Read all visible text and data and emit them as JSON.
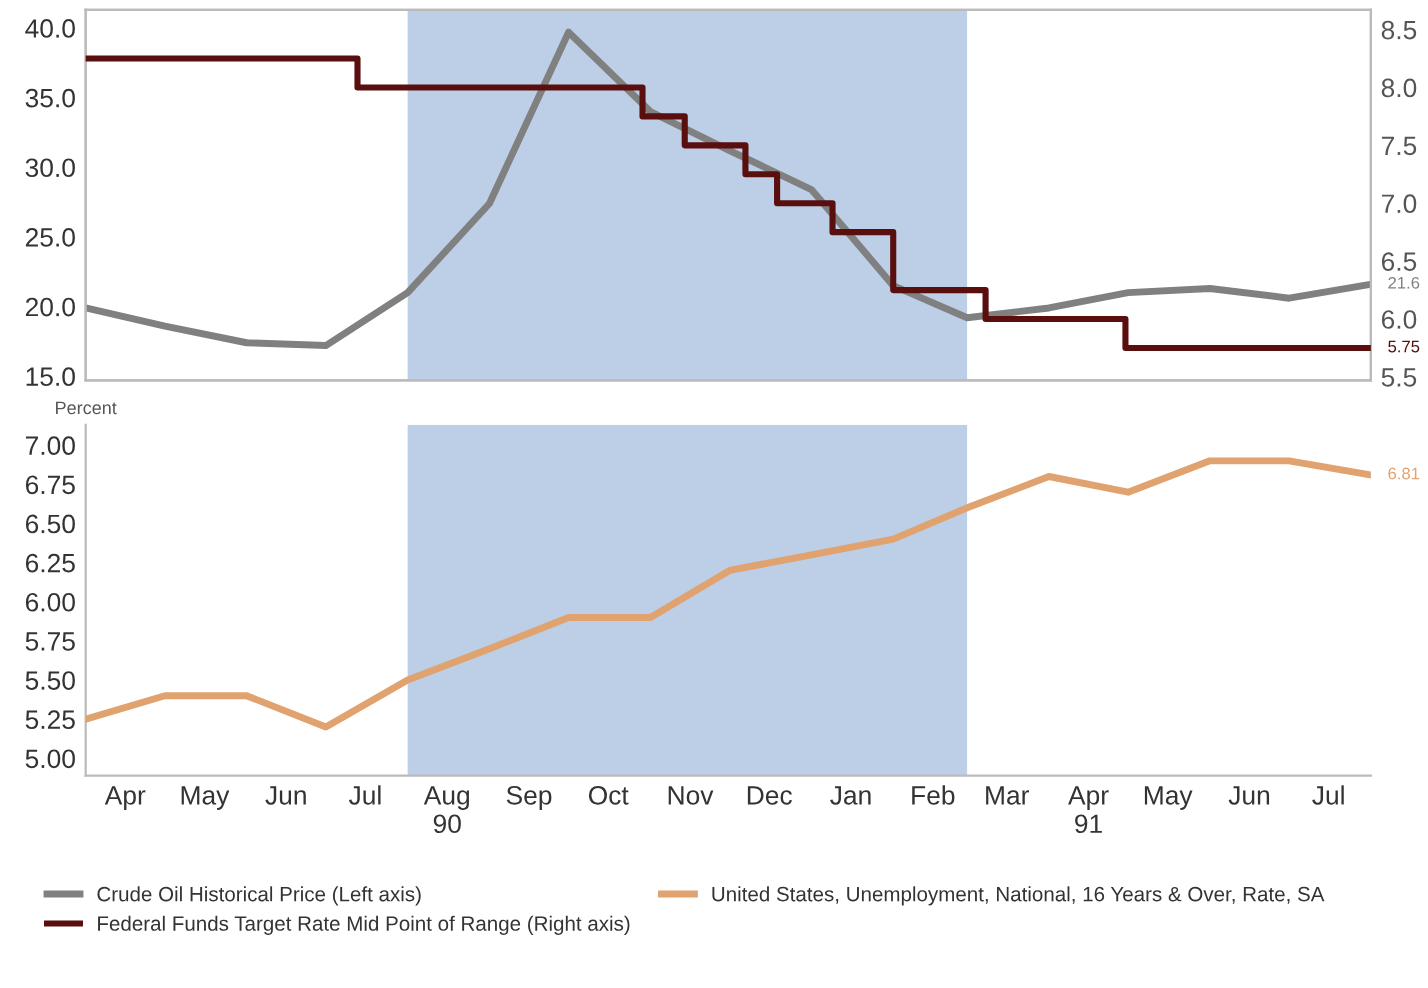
{
  "chart_data": [
    {
      "type": "line",
      "x": [
        "1990-04-01",
        "1990-05-01",
        "1990-06-01",
        "1990-07-01",
        "1990-08-01",
        "1990-09-01",
        "1990-10-01",
        "1990-11-01",
        "1990-12-01",
        "1991-01-01",
        "1991-02-01",
        "1991-03-01",
        "1991-04-01",
        "1991-05-01",
        "1991-06-01",
        "1991-07-01",
        "1991-08-01"
      ],
      "series": [
        {
          "name": "Crude Oil Historical Price (Left axis)",
          "color": "#808080",
          "values": [
            19.9,
            18.6,
            17.4,
            17.2,
            21.0,
            27.4,
            39.7,
            34.0,
            31.2,
            28.4,
            21.5,
            19.2,
            19.9,
            21.0,
            21.3,
            20.6,
            21.6
          ],
          "value_labels": [
            null,
            null,
            null,
            null,
            null,
            null,
            null,
            null,
            null,
            null,
            null,
            null,
            null,
            null,
            null,
            null,
            "21.6"
          ]
        },
        {
          "name": "Federal Funds Target Rate Mid Point of Range (Right axis)",
          "type": "step",
          "axis": "y2",
          "color": "#5a0f0f",
          "x": [
            "1990-04-01",
            "1990-07-13",
            "1990-10-29",
            "1990-11-14",
            "1990-12-07",
            "1990-12-19",
            "1991-01-09",
            "1991-02-01",
            "1991-03-08",
            "1991-04-30",
            "1991-08-01"
          ],
          "values": [
            8.25,
            8.0,
            7.75,
            7.5,
            7.25,
            7.0,
            6.75,
            6.25,
            6.0,
            5.75,
            5.75
          ],
          "value_labels": [
            null,
            null,
            null,
            null,
            null,
            null,
            null,
            null,
            null,
            null,
            "5.75"
          ]
        }
      ],
      "xlim": [
        "1990-04-01",
        "1991-08-01"
      ],
      "ylim": [
        14.7,
        41.3
      ],
      "yticks": [
        {
          "value": 15,
          "label": "15.0"
        },
        {
          "value": 20,
          "label": "20.0"
        },
        {
          "value": 25,
          "label": "25.0"
        },
        {
          "value": 30,
          "label": "30.0"
        },
        {
          "value": 35,
          "label": "35.0"
        },
        {
          "value": 40,
          "label": "40.0"
        }
      ],
      "y2lim": [
        5.47,
        8.67
      ],
      "y2ticks": [
        5.5,
        {
          "value": 6,
          "label": "6.0"
        },
        6.5,
        {
          "value": 7,
          "label": "7.0"
        },
        7.5,
        {
          "value": 8,
          "label": "8.0"
        },
        8.5
      ],
      "bands": [
        {
          "axis": "x",
          "from": "1990-08-01",
          "to": "1991-03-01",
          "color": "#bccfe6"
        }
      ],
      "tick_labels": "y",
      "grid": false,
      "legend": "bottom"
    },
    {
      "type": "line",
      "x": [
        "1990-04-01",
        "1990-05-01",
        "1990-06-01",
        "1990-07-01",
        "1990-08-01",
        "1990-09-01",
        "1990-10-01",
        "1990-11-01",
        "1990-12-01",
        "1991-01-01",
        "1991-02-01",
        "1991-03-01",
        "1991-04-01",
        "1991-05-01",
        "1991-06-01",
        "1991-07-01",
        "1991-08-01"
      ],
      "ylabel": "Percent",
      "series": [
        {
          "name": "United States, Unemployment, National, 16 Years & Over, Rate, SA",
          "color": "#e0a26e",
          "values": [
            5.25,
            5.4,
            5.4,
            5.2,
            5.5,
            5.7,
            5.9,
            5.9,
            6.2,
            6.3,
            6.4,
            6.6,
            6.8,
            6.7,
            6.9,
            6.9,
            6.81
          ],
          "value_labels": [
            null,
            null,
            null,
            null,
            null,
            null,
            null,
            null,
            null,
            null,
            null,
            null,
            null,
            null,
            null,
            null,
            "6.81"
          ]
        }
      ],
      "xlim": [
        "1990-04-01",
        "1991-08-01"
      ],
      "xticks": [
        {
          "value": "1990-04-16",
          "label": "Apr"
        },
        {
          "value": "1990-05-16",
          "label": "May"
        },
        {
          "value": "1990-06-16",
          "label": "Jun"
        },
        {
          "value": "1990-07-16",
          "label": "Jul"
        },
        {
          "value": "1990-08-16",
          "label": "Aug\n90"
        },
        {
          "value": "1990-09-16",
          "label": "Sep"
        },
        {
          "value": "1990-10-16",
          "label": "Oct"
        },
        {
          "value": "1990-11-16",
          "label": "Nov"
        },
        {
          "value": "1990-12-16",
          "label": "Dec"
        },
        {
          "value": "1991-01-16",
          "label": "Jan"
        },
        {
          "value": "1991-02-16",
          "label": "Feb"
        },
        {
          "value": "1991-03-16",
          "label": "Mar"
        },
        {
          "value": "1991-04-16",
          "label": "Apr\n91"
        },
        {
          "value": "1991-05-16",
          "label": "May"
        },
        {
          "value": "1991-06-16",
          "label": "Jun"
        },
        {
          "value": "1991-07-16",
          "label": "Jul"
        }
      ],
      "ylim": [
        4.89,
        7.13
      ],
      "yticks": [
        {
          "value": 5,
          "label": "5.00"
        },
        {
          "value": 5.25,
          "label": "5.25"
        },
        {
          "value": 5.5,
          "label": "5.50"
        },
        {
          "value": 5.75,
          "label": "5.75"
        },
        {
          "value": 6,
          "label": "6.00"
        },
        {
          "value": 6.25,
          "label": "6.25"
        },
        {
          "value": 6.5,
          "label": "6.50"
        },
        {
          "value": 6.75,
          "label": "6.75"
        },
        {
          "value": 7,
          "label": "7.00"
        }
      ],
      "bands": [
        {
          "axis": "x",
          "from": "1990-08-01",
          "to": "1991-03-01",
          "color": "#bccfe6"
        }
      ],
      "grid": false,
      "legend": "bottom"
    }
  ]
}
